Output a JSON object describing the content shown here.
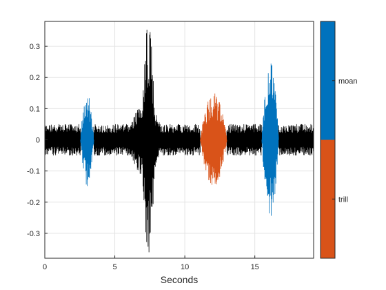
{
  "chart_data": {
    "type": "line",
    "title": "",
    "xlabel": "Seconds",
    "ylabel": "",
    "xlim": [
      0,
      19.2
    ],
    "ylim": [
      -0.38,
      0.38
    ],
    "xticks": [
      0,
      5,
      10,
      15
    ],
    "yticks": [
      -0.3,
      -0.2,
      -0.1,
      0,
      0.1,
      0.2,
      0.3
    ],
    "xtick_labels": [
      "0",
      "5",
      "10",
      "15"
    ],
    "ytick_labels": [
      "-0.3",
      "-0.2",
      "-0.1",
      "0",
      "0.1",
      "0.2",
      "0.3"
    ],
    "grid": true,
    "series": [
      {
        "color": "#000000",
        "segments": [
          {
            "start": 0.0,
            "end": 2.55,
            "peak": 0.05
          },
          {
            "start": 3.5,
            "end": 11.1,
            "peak": 0.05
          },
          {
            "start": 5.9,
            "end": 8.5,
            "peak": 0.12
          },
          {
            "start": 6.9,
            "end": 7.9,
            "peak": 0.37
          },
          {
            "start": 13.0,
            "end": 15.5,
            "peak": 0.05
          },
          {
            "start": 16.7,
            "end": 19.2,
            "peak": 0.05
          }
        ]
      },
      {
        "name": "moan",
        "color": "#0072BD",
        "segments": [
          {
            "start": 2.55,
            "end": 3.5,
            "peak": 0.15
          },
          {
            "start": 15.5,
            "end": 16.7,
            "peak": 0.25
          }
        ]
      },
      {
        "name": "trill",
        "color": "#D95319",
        "segments": [
          {
            "start": 11.1,
            "end": 13.0,
            "peak": 0.15
          }
        ]
      }
    ],
    "colorbar": {
      "labels": [
        "moan",
        "trill"
      ],
      "colors": [
        "#0072BD",
        "#D95319"
      ]
    }
  }
}
